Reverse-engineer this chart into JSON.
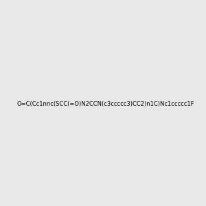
{
  "smiles": "O=C(Cc1nnc(SCC(=O)N2CCN(c3ccccc3)CC2)n1C)Nc1ccccc1F",
  "image_size": 300,
  "background_color": "#e8e8e8",
  "title": ""
}
